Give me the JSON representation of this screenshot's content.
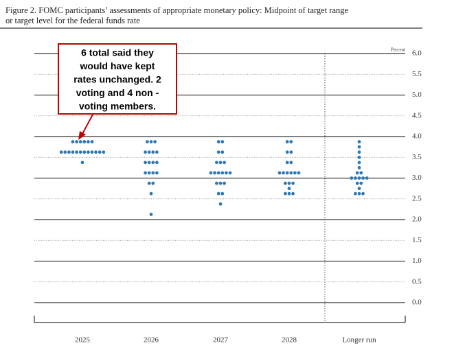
{
  "chart_data": {
    "type": "dot",
    "title": [
      "Figure 2. FOMC participants’ assessments of appropriate monetary policy: Midpoint of target range",
      "or target level for the federal funds rate"
    ],
    "y_label": "Percent",
    "categories": [
      "2025",
      "2026",
      "2027",
      "2028",
      "Longer run"
    ],
    "color": "#2f78b4",
    "dots": [
      {
        "values": [
          3.875,
          3.625,
          3.375
        ],
        "counts": [
          6,
          12,
          1
        ]
      },
      {
        "values": [
          3.875,
          3.625,
          3.375,
          3.125,
          2.875,
          2.625,
          2.125
        ],
        "counts": [
          3,
          4,
          4,
          4,
          2,
          1,
          1
        ]
      },
      {
        "values": [
          3.875,
          3.625,
          3.375,
          3.125,
          2.875,
          2.625,
          2.375
        ],
        "counts": [
          2,
          2,
          3,
          6,
          3,
          2,
          1
        ]
      },
      {
        "values": [
          3.875,
          3.625,
          3.375,
          3.125,
          2.875,
          2.75,
          2.625
        ],
        "counts": [
          2,
          2,
          2,
          6,
          3,
          1,
          3
        ]
      },
      {
        "values": [
          3.875,
          3.75,
          3.625,
          3.5,
          3.375,
          3.25,
          3.125,
          3.0,
          2.875,
          2.75,
          2.625
        ],
        "counts": [
          1,
          1,
          1,
          1,
          1,
          1,
          2,
          5,
          2,
          1,
          3
        ]
      }
    ],
    "ylim": [
      0,
      6
    ],
    "yticks": [
      {
        "value": 0,
        "label": "0.0"
      },
      {
        "value": 0.5,
        "label": "0.5"
      },
      {
        "value": 1,
        "label": "1.0"
      },
      {
        "value": 1.5,
        "label": "1.5"
      },
      {
        "value": 2,
        "label": "2.0"
      },
      {
        "value": 2.5,
        "label": "2.5"
      },
      {
        "value": 3,
        "label": "3.0"
      },
      {
        "value": 3.5,
        "label": "3.5"
      },
      {
        "value": 4,
        "label": "4.0"
      },
      {
        "value": 4.5,
        "label": "4.5"
      },
      {
        "value": 5,
        "label": "5.0"
      },
      {
        "value": 5.5,
        "label": "5.5"
      },
      {
        "value": 6,
        "label": "6.0"
      }
    ],
    "annotation": [
      "6 total said they",
      "would have kept",
      "rates unchanged. 2",
      "voting and 4 non -",
      "voting members."
    ],
    "annotation_color": "#c00000"
  }
}
